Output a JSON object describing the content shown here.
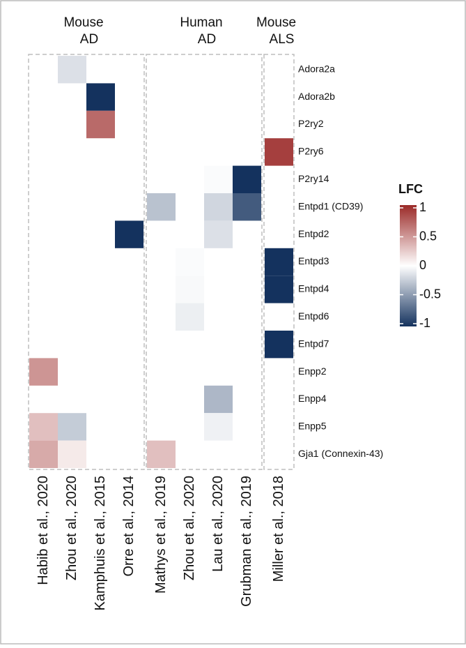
{
  "chart_data": {
    "type": "heatmap",
    "groups": [
      {
        "label": [
          "Mouse",
          "AD"
        ],
        "columns": [
          "Habib et al., 2020",
          "Zhou et al., 2020",
          "Kamphuis et al., 2015",
          "Orre et al., 2014"
        ]
      },
      {
        "label": [
          "Human",
          "AD"
        ],
        "columns": [
          "Mathys et al., 2019",
          "Zhou et al., 2020",
          "Lau et al., 2020",
          "Grubman et al., 2019"
        ]
      },
      {
        "label": [
          "Mouse",
          "ALS"
        ],
        "columns": [
          "Miller et al., 2018"
        ]
      }
    ],
    "rows": [
      "Adora2a",
      "Adora2b",
      "P2ry2",
      "P2ry6",
      "P2ry14",
      "Entpd1 (CD39)",
      "Entpd2",
      "Entpd3",
      "Entpd4",
      "Entpd6",
      "Entpd7",
      "Enpp2",
      "Enpp4",
      "Enpp5",
      "Gja1 (Connexin-43)"
    ],
    "values": [
      [
        null,
        -0.15,
        null,
        null,
        null,
        null,
        null,
        null,
        null
      ],
      [
        null,
        null,
        -1,
        null,
        null,
        null,
        null,
        null,
        null
      ],
      [
        null,
        null,
        0.7,
        null,
        null,
        null,
        null,
        null,
        null
      ],
      [
        null,
        null,
        null,
        null,
        null,
        null,
        null,
        null,
        0.9
      ],
      [
        null,
        null,
        null,
        null,
        null,
        null,
        -0.02,
        -1,
        null
      ],
      [
        null,
        null,
        null,
        null,
        -0.3,
        null,
        -0.2,
        -0.8,
        null
      ],
      [
        null,
        null,
        null,
        -1,
        null,
        null,
        -0.15,
        null,
        null
      ],
      [
        null,
        null,
        null,
        null,
        null,
        -0.02,
        null,
        null,
        -1
      ],
      [
        null,
        null,
        null,
        null,
        null,
        -0.03,
        null,
        null,
        -1
      ],
      [
        null,
        null,
        null,
        null,
        null,
        -0.08,
        null,
        null,
        null
      ],
      [
        null,
        null,
        null,
        null,
        null,
        null,
        null,
        null,
        -1
      ],
      [
        0.5,
        null,
        null,
        null,
        null,
        null,
        null,
        null,
        null
      ],
      [
        null,
        null,
        null,
        null,
        null,
        null,
        -0.35,
        null,
        null
      ],
      [
        0.3,
        -0.25,
        null,
        null,
        null,
        null,
        -0.07,
        null,
        null
      ],
      [
        0.4,
        0.1,
        null,
        null,
        0.3,
        null,
        null,
        null,
        null
      ]
    ],
    "legend_title": "LFC",
    "clim": [
      -1,
      1
    ],
    "cticks": [
      1,
      0.5,
      0,
      -0.5,
      -1
    ],
    "colors": [
      "#14325e",
      "#ffffff",
      "#9b2a28"
    ]
  }
}
